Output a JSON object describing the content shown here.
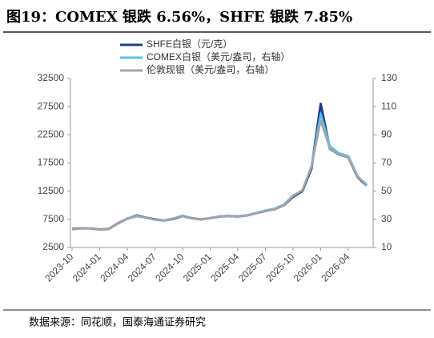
{
  "chart_data": {
    "type": "line",
    "title": "图19：COMEX 银跌 6.56%，SHFE 银跌 7.85%",
    "source": "数据来源：同花顺，国泰海通证券研究",
    "categories": [
      "2023-10",
      null,
      null,
      "2024-01",
      null,
      null,
      "2024-04",
      null,
      null,
      "2024-07",
      null,
      null,
      "2024-10",
      null,
      null,
      "2025-01",
      null,
      null,
      "2025-04",
      null,
      null,
      "2025-07",
      null,
      null,
      "2025-10",
      null,
      null,
      "2026-01",
      null,
      null,
      "2026-04",
      null,
      null
    ],
    "series": [
      {
        "name": "SHFE白银（元/克）",
        "color": "#1f3c88",
        "axis": "y",
        "values": [
          5800,
          5900,
          5900,
          5700,
          5800,
          6800,
          7600,
          8200,
          7800,
          7500,
          7300,
          7600,
          8100,
          7700,
          7500,
          7700,
          8000,
          8100,
          8000,
          8200,
          8600,
          9000,
          9300,
          10000,
          11500,
          12500,
          16500,
          28000,
          20000,
          19000,
          18500,
          15000,
          13500
        ]
      },
      {
        "name": "COMEX白银（美元/盎司，右轴）",
        "color": "#5bc0eb",
        "axis": "y2",
        "values": [
          23,
          23.6,
          23.8,
          22.6,
          23,
          27,
          30.8,
          32.6,
          31,
          29.6,
          29,
          30.6,
          32.8,
          30.6,
          29.8,
          30.6,
          32.2,
          32.6,
          31.6,
          33,
          34.6,
          36.4,
          37.6,
          40.6,
          47,
          50.4,
          68,
          105,
          82,
          77,
          75,
          61,
          54
        ]
      },
      {
        "name": "伦敦现银（美元/盎司，右轴）",
        "color": "#a6a6a6",
        "axis": "y2",
        "values": [
          22.8,
          23.4,
          23.6,
          22.8,
          23.2,
          27.2,
          30.2,
          32,
          31.2,
          29.8,
          29.4,
          30.8,
          32.4,
          30.8,
          30,
          30.8,
          32,
          32.4,
          32,
          32.8,
          34.4,
          36,
          37.2,
          40,
          46.6,
          50.8,
          67,
          100,
          80,
          76,
          74,
          60,
          55
        ]
      }
    ],
    "ylim": [
      2500,
      32500
    ],
    "yticks": [
      2500,
      7500,
      12500,
      17500,
      22500,
      27500,
      32500
    ],
    "y2lim": [
      10,
      130
    ],
    "y2ticks": [
      10,
      30,
      50,
      70,
      90,
      110,
      130
    ],
    "legend": "top"
  }
}
